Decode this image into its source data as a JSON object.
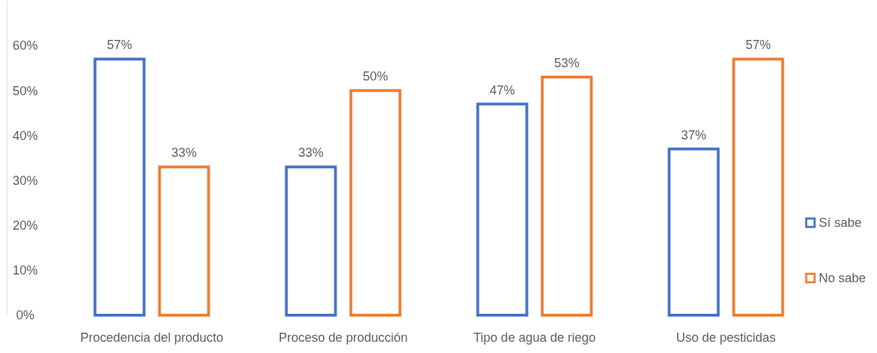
{
  "chart_data": {
    "type": "bar",
    "categories": [
      "Procedencia del producto",
      "Proceso de producción",
      "Tipo de agua de riego",
      "Uso de pesticidas"
    ],
    "series": [
      {
        "name": "Sí sabe",
        "color": "#4472c4",
        "values": [
          57,
          33,
          47,
          37
        ]
      },
      {
        "name": "No sabe",
        "color": "#ed7d31",
        "values": [
          33,
          50,
          53,
          57
        ]
      }
    ],
    "ylim": [
      0,
      70
    ],
    "yticks": [
      {
        "value": 0,
        "label": "0%"
      },
      {
        "value": 10,
        "label": "10%"
      },
      {
        "value": 20,
        "label": "20%"
      },
      {
        "value": 30,
        "label": "30%"
      },
      {
        "value": 40,
        "label": "40%"
      },
      {
        "value": 50,
        "label": "50%"
      },
      {
        "value": 60,
        "label": "60%"
      }
    ],
    "value_labels": [
      [
        "57%",
        "33%",
        "47%",
        "37%"
      ],
      [
        "33%",
        "50%",
        "53%",
        "57%"
      ]
    ],
    "legend": "right",
    "grid": false
  }
}
